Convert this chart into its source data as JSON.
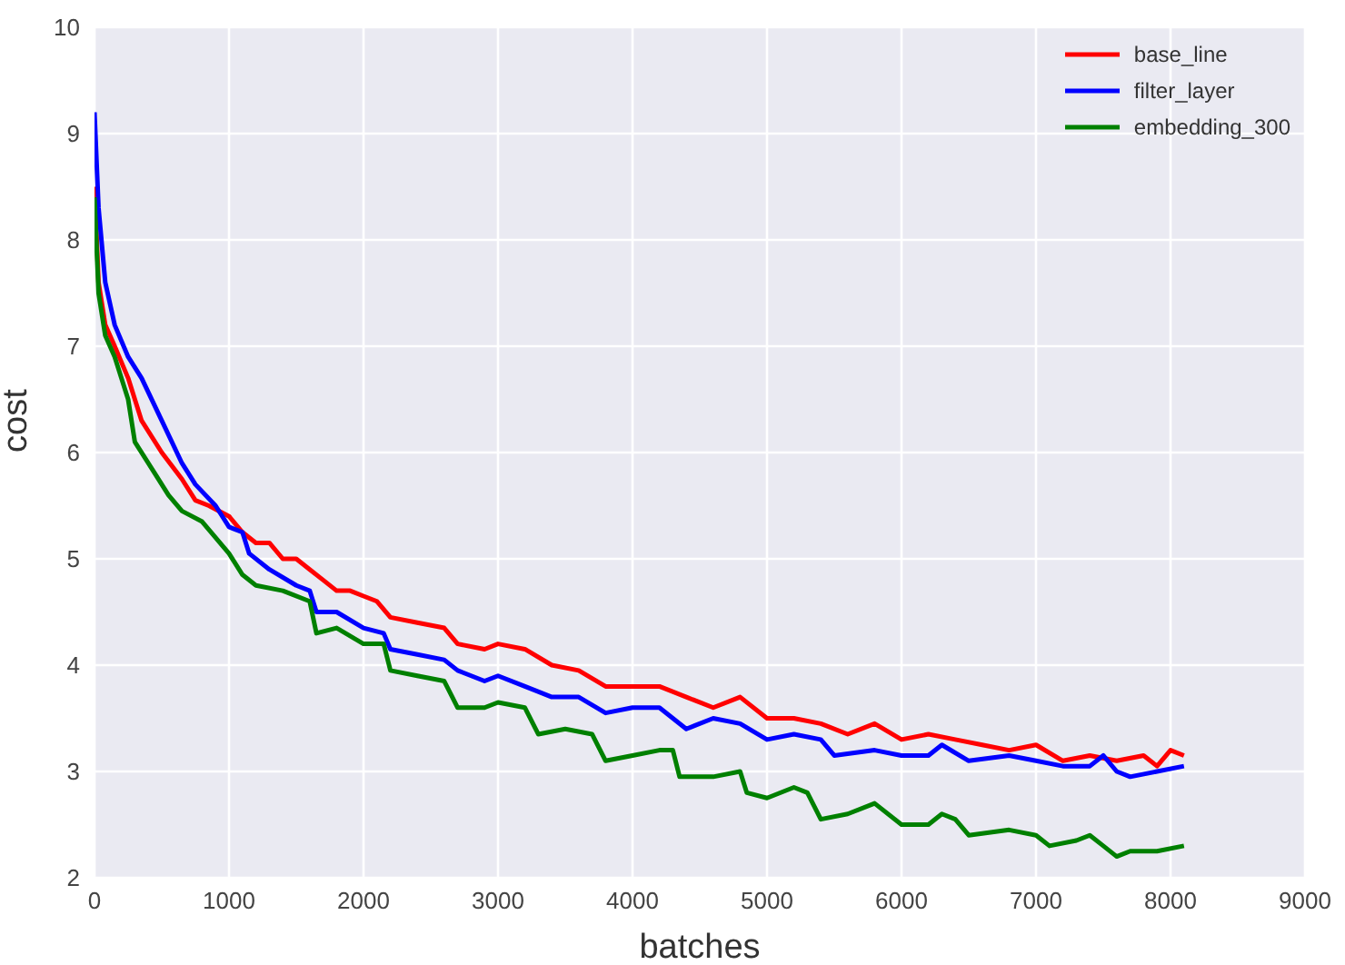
{
  "chart_data": {
    "type": "line",
    "xlabel": "batches",
    "ylabel": "cost",
    "xlim": [
      0,
      9000
    ],
    "xticks": [
      0,
      1000,
      2000,
      3000,
      4000,
      5000,
      6000,
      7000,
      8000,
      9000
    ],
    "ylim": [
      2,
      10
    ],
    "yticks": [
      2,
      3,
      4,
      5,
      6,
      7,
      8,
      9,
      10
    ],
    "grid": true,
    "legend": "top right",
    "marker": "none",
    "line_style": "solid",
    "series": [
      {
        "name": "base_line",
        "color": "#ff0000",
        "x": [
          0,
          30,
          80,
          150,
          250,
          350,
          500,
          650,
          750,
          850,
          1000,
          1100,
          1200,
          1300,
          1400,
          1500,
          1600,
          1700,
          1800,
          1900,
          2000,
          2100,
          2200,
          2400,
          2600,
          2700,
          2900,
          3000,
          3200,
          3400,
          3600,
          3800,
          4000,
          4200,
          4400,
          4600,
          4800,
          5000,
          5200,
          5400,
          5600,
          5800,
          6000,
          6200,
          6400,
          6600,
          6800,
          7000,
          7200,
          7400,
          7600,
          7800,
          7900,
          8000,
          8100
        ],
        "values": [
          8.5,
          7.6,
          7.2,
          7.0,
          6.7,
          6.3,
          6.0,
          5.75,
          5.55,
          5.5,
          5.4,
          5.25,
          5.15,
          5.15,
          5.0,
          5.0,
          4.9,
          4.8,
          4.7,
          4.7,
          4.65,
          4.6,
          4.45,
          4.4,
          4.35,
          4.2,
          4.15,
          4.2,
          4.15,
          4.0,
          3.95,
          3.8,
          3.8,
          3.8,
          3.7,
          3.6,
          3.7,
          3.5,
          3.5,
          3.45,
          3.35,
          3.45,
          3.3,
          3.35,
          3.3,
          3.25,
          3.2,
          3.25,
          3.1,
          3.15,
          3.1,
          3.15,
          3.05,
          3.2,
          3.15
        ]
      },
      {
        "name": "filter_layer",
        "color": "#0000ff",
        "x": [
          0,
          30,
          80,
          150,
          250,
          350,
          500,
          650,
          750,
          900,
          1000,
          1100,
          1150,
          1300,
          1500,
          1600,
          1650,
          1800,
          2000,
          2150,
          2200,
          2400,
          2600,
          2700,
          2900,
          3000,
          3200,
          3400,
          3600,
          3800,
          4000,
          4200,
          4400,
          4600,
          4800,
          5000,
          5200,
          5400,
          5500,
          5800,
          6000,
          6200,
          6300,
          6500,
          6800,
          7000,
          7200,
          7400,
          7500,
          7600,
          7700,
          7900,
          8100
        ],
        "values": [
          9.2,
          8.3,
          7.6,
          7.2,
          6.9,
          6.7,
          6.3,
          5.9,
          5.7,
          5.5,
          5.3,
          5.25,
          5.05,
          4.9,
          4.75,
          4.7,
          4.5,
          4.5,
          4.35,
          4.3,
          4.15,
          4.1,
          4.05,
          3.95,
          3.85,
          3.9,
          3.8,
          3.7,
          3.7,
          3.55,
          3.6,
          3.6,
          3.4,
          3.5,
          3.45,
          3.3,
          3.35,
          3.3,
          3.15,
          3.2,
          3.15,
          3.15,
          3.25,
          3.1,
          3.15,
          3.1,
          3.05,
          3.05,
          3.15,
          3.0,
          2.95,
          3.0,
          3.05
        ]
      },
      {
        "name": "embedding_300",
        "color": "#008000",
        "x": [
          0,
          30,
          80,
          150,
          250,
          300,
          450,
          550,
          650,
          800,
          1000,
          1100,
          1200,
          1400,
          1600,
          1650,
          1800,
          2000,
          2150,
          2200,
          2400,
          2600,
          2700,
          2900,
          3000,
          3200,
          3300,
          3500,
          3700,
          3800,
          4000,
          4200,
          4300,
          4350,
          4600,
          4800,
          4850,
          5000,
          5200,
          5300,
          5400,
          5600,
          5800,
          6000,
          6200,
          6300,
          6400,
          6500,
          6800,
          7000,
          7100,
          7300,
          7400,
          7500,
          7600,
          7700,
          7900,
          8100
        ],
        "values": [
          8.4,
          7.5,
          7.1,
          6.9,
          6.5,
          6.1,
          5.8,
          5.6,
          5.45,
          5.35,
          5.05,
          4.85,
          4.75,
          4.7,
          4.6,
          4.3,
          4.35,
          4.2,
          4.2,
          3.95,
          3.9,
          3.85,
          3.6,
          3.6,
          3.65,
          3.6,
          3.35,
          3.4,
          3.35,
          3.1,
          3.15,
          3.2,
          3.2,
          2.95,
          2.95,
          3.0,
          2.8,
          2.75,
          2.85,
          2.8,
          2.55,
          2.6,
          2.7,
          2.5,
          2.5,
          2.6,
          2.55,
          2.4,
          2.45,
          2.4,
          2.3,
          2.35,
          2.4,
          2.3,
          2.2,
          2.25,
          2.25,
          2.3
        ]
      }
    ]
  }
}
